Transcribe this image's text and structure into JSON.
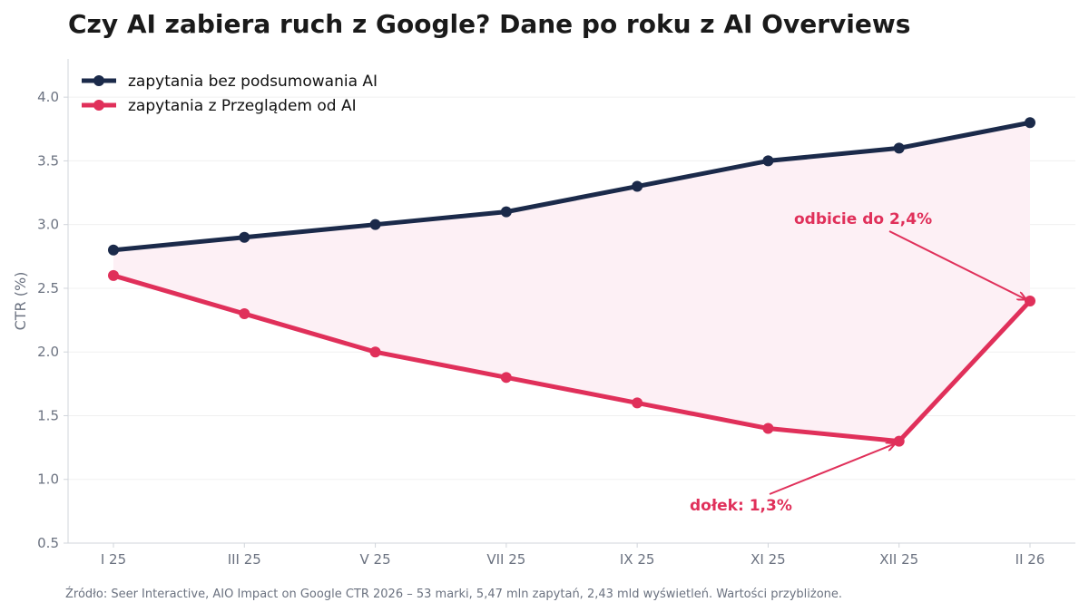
{
  "chart_data": {
    "type": "line",
    "title": "Czy AI zabiera ruch z Google? Dane po roku z AI Overviews",
    "xlabel": "",
    "ylabel": "CTR (%)",
    "categories": [
      "I 25",
      "III 25",
      "V 25",
      "VII 25",
      "IX 25",
      "XI 25",
      "XII 25",
      "II 26"
    ],
    "ylim": [
      0.5,
      4.3
    ],
    "yticks": [
      "0.5",
      "1.0",
      "1.5",
      "2.0",
      "2.5",
      "3.0",
      "3.5",
      "4.0"
    ],
    "grid": true,
    "legend_position": "top-left",
    "shaded_area_between_series": true,
    "series": [
      {
        "name": "zapytania bez podsumowania AI",
        "color": "#1b2a4a",
        "values": [
          2.8,
          2.9,
          3.0,
          3.1,
          3.3,
          3.5,
          3.6,
          3.8
        ]
      },
      {
        "name": "zapytania z Przeglądem od AI",
        "color": "#e0305a",
        "values": [
          2.6,
          2.3,
          2.0,
          1.8,
          1.6,
          1.4,
          1.3,
          2.4
        ]
      }
    ],
    "annotations": [
      {
        "text": "odbicie do 2,4%",
        "category": "II 26",
        "value": 2.4,
        "color": "#e0305a"
      },
      {
        "text": "dołek: 1,3%",
        "category": "XII 25",
        "value": 1.3,
        "color": "#e0305a"
      }
    ]
  },
  "source_note": "Źródło: Seer Interactive, AIO Impact on Google CTR 2026 – 53 marki, 5,47 mln zapytań, 2,43 mld wyświetleń. Wartości przybliżone.",
  "colors": {
    "fill_between": "#fdf0f5",
    "axis": "#d1d5db",
    "grid": "#f0f0f0"
  }
}
